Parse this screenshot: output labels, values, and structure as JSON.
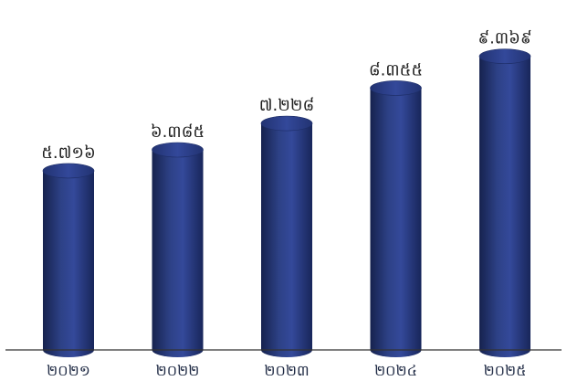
{
  "chart_data": {
    "type": "bar",
    "categories": [
      "២០២១",
      "២០២២",
      "២០២៣",
      "២០២៤",
      "២០២៥"
    ],
    "category_values": [
      2021,
      2022,
      2023,
      2024,
      2025
    ],
    "values": [
      5716,
      6385,
      7228,
      8355,
      9369
    ],
    "data_labels": [
      "៥.៧១៦",
      "៦.៣៨៥",
      "៧.២២៨",
      "៨.៣៥៥",
      "៩.៣៦៩"
    ],
    "title": "",
    "xlabel": "",
    "ylabel": "",
    "ylim": [
      0,
      10000
    ],
    "grid": false,
    "legend": "none",
    "bar_style": "cylinder",
    "colors": {
      "bar_dark": "#1a2a5c",
      "bar_mid": "#2e4288",
      "bar_light": "#3a519a",
      "top_ellipse": "#2a3d80",
      "baseline": "#333333"
    }
  }
}
